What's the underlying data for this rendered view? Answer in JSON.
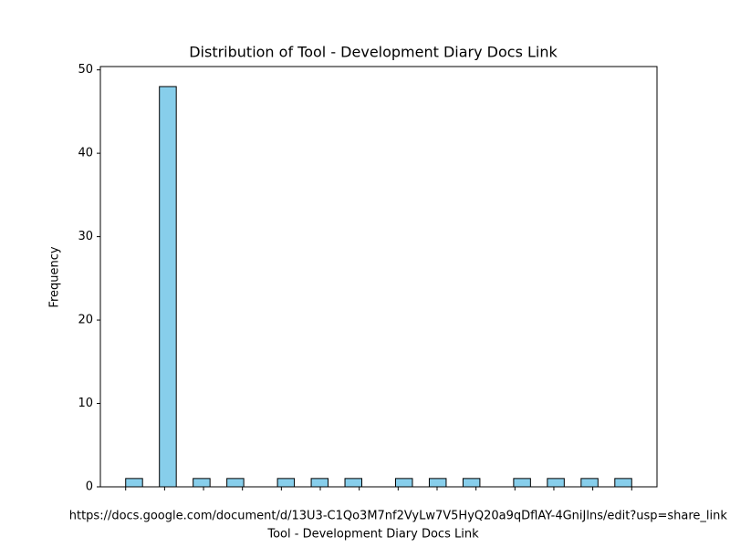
{
  "chart_data": {
    "type": "histogram",
    "title": "Distribution of Tool - Development Diary Docs Link",
    "x_label": "Tool - Development Diary Docs Link",
    "y_label": "Frequency",
    "bins": [
      0,
      0.43333,
      0.86667,
      1.3,
      1.73333,
      2.16667,
      2.6,
      3.03333,
      3.46667,
      3.9,
      4.33333,
      4.76667,
      5.2,
      5.63333,
      6.06667,
      6.5,
      6.93333,
      7.36667,
      7.8,
      8.23333,
      8.66667,
      9.1,
      9.53333,
      9.96667,
      10.4,
      10.83333,
      11.26667,
      11.7,
      12.13333,
      12.56667,
      13
    ],
    "counts": [
      1,
      0,
      48,
      0,
      1,
      0,
      1,
      0,
      0,
      1,
      0,
      1,
      0,
      1,
      0,
      0,
      1,
      0,
      1,
      0,
      1,
      0,
      0,
      1,
      0,
      1,
      0,
      1,
      0,
      1
    ],
    "color": "#87ceeb",
    "edge_color": "#000000",
    "xlim": [
      -0.65,
      13.65
    ],
    "ylim": [
      0,
      50.4
    ],
    "yticks": [
      0,
      10,
      20,
      30,
      40,
      50
    ],
    "xticks": [
      {
        "value": 0,
        "label": null
      },
      {
        "value": 1,
        "label": null
      },
      {
        "value": 2,
        "label": null
      },
      {
        "value": 3,
        "label": null
      },
      {
        "value": 4,
        "label": null
      },
      {
        "value": 5,
        "label": null
      },
      {
        "value": 6,
        "label": null
      },
      {
        "value": 7,
        "label": "https://docs.google.com/document/d/13U3-C1Qo3M7nf2VyLw7V5HyQ20a9qDflAY-4GniJlns/edit?usp=share_link"
      },
      {
        "value": 8,
        "label": null
      },
      {
        "value": 9,
        "label": null
      },
      {
        "value": 10,
        "label": null
      },
      {
        "value": 11,
        "label": null
      },
      {
        "value": 12,
        "label": null
      },
      {
        "value": 13,
        "label": null
      }
    ]
  }
}
